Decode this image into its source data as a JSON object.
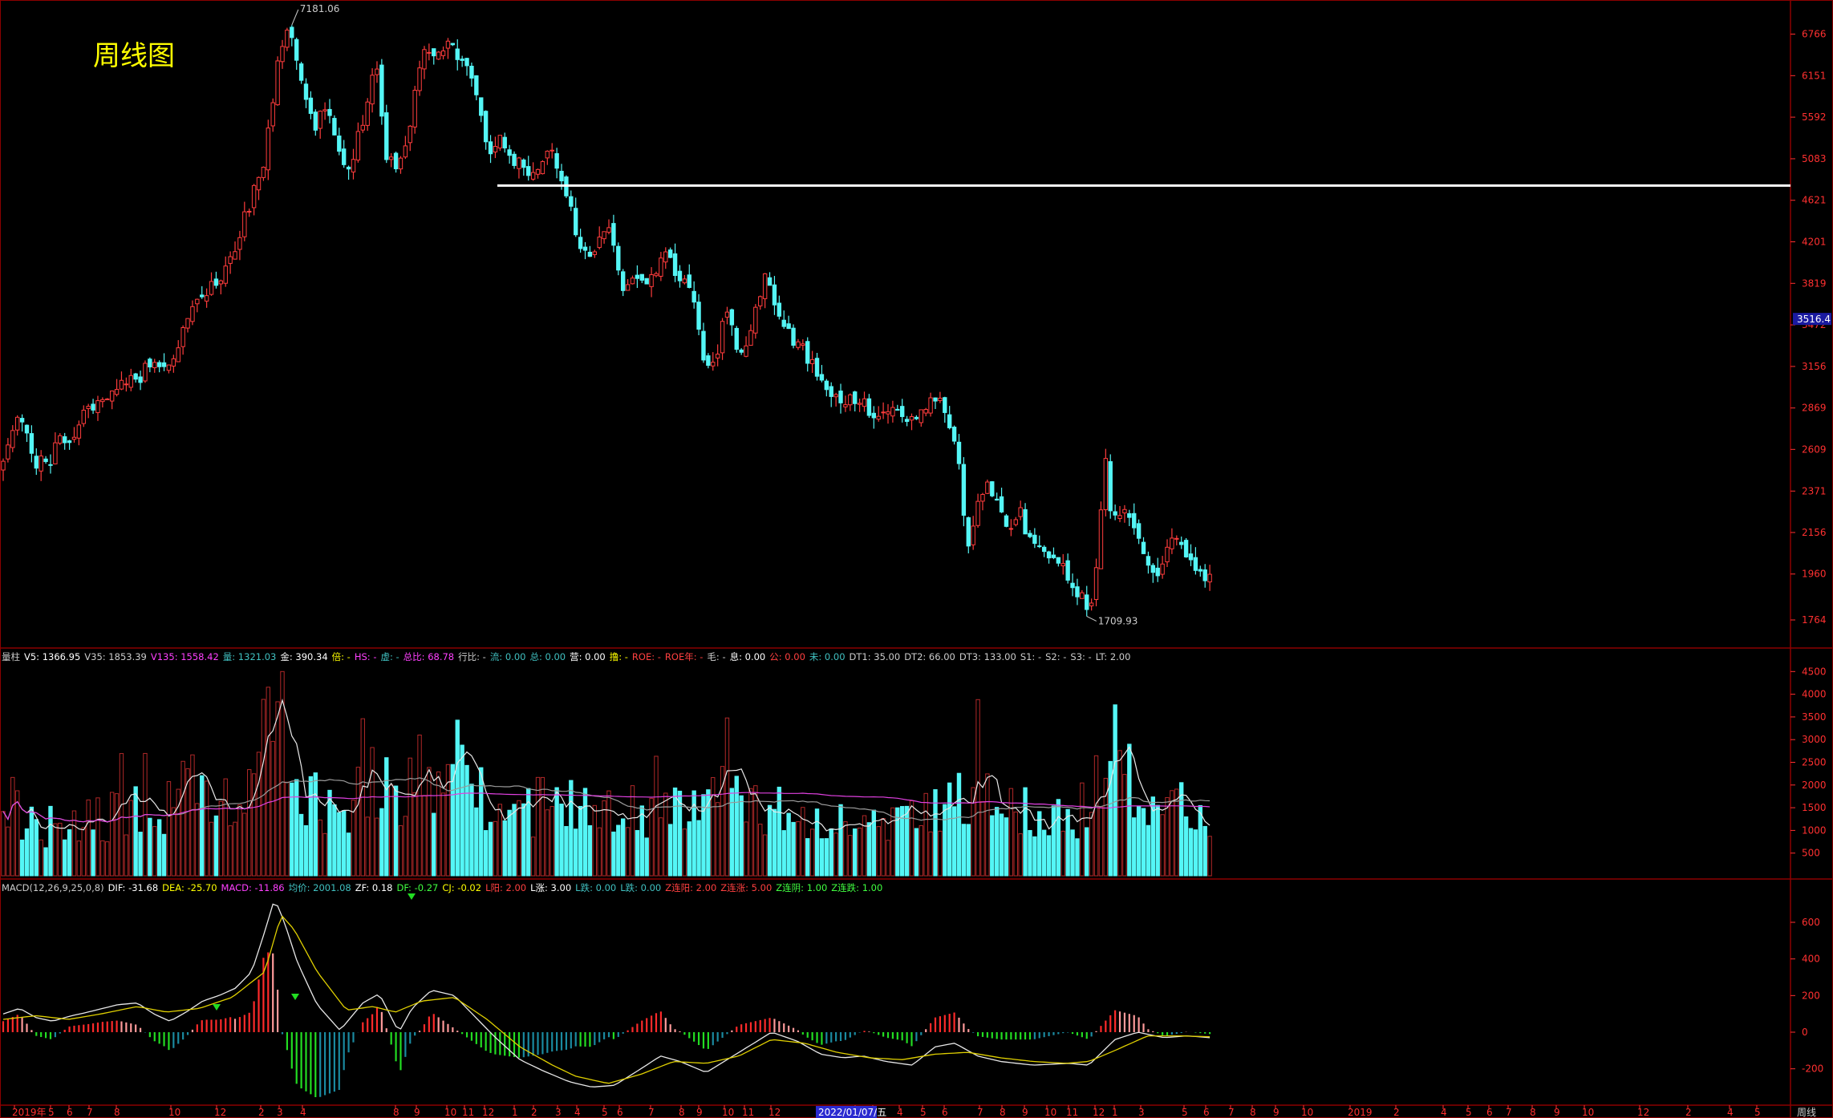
{
  "title": "周线图",
  "colors": {
    "up": "#ff3c3c",
    "down": "#54f6f6",
    "bg": "#000000",
    "grid": "#8b0000",
    "axis": "#ff3030",
    "ma_white": "#e8e8e8",
    "ma_yellow": "#e0d000",
    "ma_magenta": "#e040e0",
    "level_line": "#ffffff"
  },
  "volume_header": [
    {
      "t": "量柱",
      "c": "#cccccc"
    },
    {
      "t": "V5: 1366.95",
      "c": "#ffffff"
    },
    {
      "t": "V35: 1853.39",
      "c": "#cccccc"
    },
    {
      "t": "V135: 1558.42",
      "c": "#ff40ff"
    },
    {
      "t": "量: 1321.03",
      "c": "#40c0c0"
    },
    {
      "t": "金: 390.34",
      "c": "#ffffff"
    },
    {
      "t": "倍: -",
      "c": "#ffff00"
    },
    {
      "t": "HS: -",
      "c": "#ff40ff"
    },
    {
      "t": "虚: -",
      "c": "#40c0c0"
    },
    {
      "t": "总比: 68.78",
      "c": "#ff40ff"
    },
    {
      "t": "行比: -",
      "c": "#cccccc"
    },
    {
      "t": "流: 0.00",
      "c": "#40c0c0"
    },
    {
      "t": "总: 0.00",
      "c": "#40c0c0"
    },
    {
      "t": "营: 0.00",
      "c": "#ffffff"
    },
    {
      "t": "撸: -",
      "c": "#ffff00"
    },
    {
      "t": "ROE: -",
      "c": "#ff4040"
    },
    {
      "t": "ROE年: -",
      "c": "#ff4040"
    },
    {
      "t": "毛: -",
      "c": "#cccccc"
    },
    {
      "t": "息: 0.00",
      "c": "#ffffff"
    },
    {
      "t": "公: 0.00",
      "c": "#ff4040"
    },
    {
      "t": "未: 0.00",
      "c": "#40c0c0"
    },
    {
      "t": "DT1: 35.00",
      "c": "#cccccc"
    },
    {
      "t": "DT2: 66.00",
      "c": "#cccccc"
    },
    {
      "t": "DT3: 133.00",
      "c": "#cccccc"
    },
    {
      "t": "S1: -",
      "c": "#cccccc"
    },
    {
      "t": "S2: -",
      "c": "#cccccc"
    },
    {
      "t": "S3: -",
      "c": "#cccccc"
    },
    {
      "t": "LT: 2.00",
      "c": "#cccccc"
    }
  ],
  "macd_header": [
    {
      "t": "MACD(12,26,9,25,0,8)",
      "c": "#cccccc"
    },
    {
      "t": "DIF: -31.68",
      "c": "#ffffff"
    },
    {
      "t": "DEA: -25.70",
      "c": "#ffff00"
    },
    {
      "t": "MACD: -11.86",
      "c": "#ff40ff"
    },
    {
      "t": "均价: 2001.08",
      "c": "#40c0c0"
    },
    {
      "t": "ZF: 0.18",
      "c": "#ffffff"
    },
    {
      "t": "DF: -0.27",
      "c": "#40ff40"
    },
    {
      "t": "CJ: -0.02",
      "c": "#ffff00"
    },
    {
      "t": "L阳: 2.00",
      "c": "#ff4040"
    },
    {
      "t": "L涨: 3.00",
      "c": "#ffffff"
    },
    {
      "t": "L跌: 0.00",
      "c": "#40c0c0"
    },
    {
      "t": "L跌: 0.00",
      "c": "#40c0c0"
    },
    {
      "t": "Z连阳: 2.00",
      "c": "#ff4040"
    },
    {
      "t": "Z连涨: 5.00",
      "c": "#ff4040"
    },
    {
      "t": "Z连阴: 1.00",
      "c": "#40ff40"
    },
    {
      "t": "Z连跌: 1.00",
      "c": "#40ff40"
    }
  ],
  "chart_data": [
    {
      "type": "candlestick",
      "panel": "price",
      "ylim": [
        1660,
        7250
      ],
      "yticks": [
        6766,
        6151,
        5592,
        5083,
        4621,
        4201,
        3819,
        3472,
        3156,
        2869,
        2609,
        2371,
        2156,
        1960,
        1764
      ],
      "current_price": "3516.4",
      "annotations": {
        "high": "7181.06",
        "low": "1709.93"
      },
      "level_line": 4780,
      "n_bars": 256,
      "anchors": [
        [
          0,
          2520
        ],
        [
          10,
          2800
        ],
        [
          20,
          2530
        ],
        [
          28,
          2520
        ],
        [
          32,
          2640
        ],
        [
          42,
          2680
        ],
        [
          52,
          2870
        ],
        [
          62,
          2930
        ],
        [
          72,
          3030
        ],
        [
          82,
          3050
        ],
        [
          92,
          3210
        ],
        [
          102,
          3150
        ],
        [
          112,
          3530
        ],
        [
          122,
          3740
        ],
        [
          132,
          3850
        ],
        [
          140,
          4080
        ],
        [
          148,
          4470
        ],
        [
          152,
          4620
        ],
        [
          160,
          5110
        ],
        [
          170,
          6600
        ],
        [
          174,
          6900
        ],
        [
          180,
          6400
        ],
        [
          184,
          5900
        ],
        [
          190,
          5380
        ],
        [
          198,
          5800
        ],
        [
          204,
          5300
        ],
        [
          210,
          4900
        ],
        [
          220,
          5500
        ],
        [
          228,
          6300
        ],
        [
          234,
          5150
        ],
        [
          242,
          4980
        ],
        [
          248,
          5400
        ],
        [
          256,
          6500
        ],
        [
          264,
          6500
        ],
        [
          272,
          6600
        ],
        [
          280,
          6400
        ],
        [
          288,
          6050
        ],
        [
          296,
          5150
        ],
        [
          304,
          5350
        ],
        [
          312,
          5100
        ],
        [
          320,
          5000
        ],
        [
          326,
          4830
        ],
        [
          334,
          5180
        ],
        [
          340,
          5000
        ],
        [
          346,
          4620
        ],
        [
          352,
          4200
        ],
        [
          358,
          4050
        ],
        [
          364,
          4190
        ],
        [
          372,
          4310
        ],
        [
          380,
          3730
        ],
        [
          388,
          3900
        ],
        [
          396,
          3810
        ],
        [
          404,
          4150
        ],
        [
          412,
          3910
        ],
        [
          420,
          3780
        ],
        [
          428,
          3200
        ],
        [
          436,
          3240
        ],
        [
          442,
          3610
        ],
        [
          450,
          3220
        ],
        [
          458,
          3450
        ],
        [
          466,
          3880
        ],
        [
          474,
          3590
        ],
        [
          482,
          3350
        ],
        [
          490,
          3260
        ],
        [
          498,
          3100
        ],
        [
          506,
          2950
        ],
        [
          514,
          2930
        ],
        [
          522,
          2910
        ],
        [
          530,
          2860
        ],
        [
          538,
          2830
        ],
        [
          546,
          2840
        ],
        [
          554,
          2820
        ],
        [
          562,
          2860
        ],
        [
          570,
          2960
        ],
        [
          578,
          2780
        ],
        [
          584,
          2580
        ],
        [
          590,
          2050
        ],
        [
          598,
          2400
        ],
        [
          606,
          2360
        ],
        [
          614,
          2180
        ],
        [
          622,
          2250
        ],
        [
          630,
          2080
        ],
        [
          638,
          2040
        ],
        [
          646,
          1990
        ],
        [
          652,
          1950
        ],
        [
          660,
          1850
        ],
        [
          664,
          1770
        ],
        [
          670,
          2090
        ],
        [
          674,
          2620
        ],
        [
          678,
          2200
        ],
        [
          684,
          2280
        ],
        [
          692,
          2200
        ],
        [
          700,
          2020
        ],
        [
          706,
          1960
        ],
        [
          714,
          2120
        ],
        [
          722,
          2060
        ],
        [
          730,
          1950
        ],
        [
          738,
          1970
        ]
      ]
    },
    {
      "type": "bar",
      "panel": "volume",
      "ylim": [
        0,
        4700
      ],
      "yticks": [
        4500,
        4000,
        3500,
        3000,
        2500,
        2000,
        1500,
        1000,
        500.0
      ],
      "ma_series": [
        {
          "name": "V5"
        },
        {
          "name": "V35"
        },
        {
          "name": "V135"
        }
      ],
      "anchors": [
        [
          0,
          1700
        ],
        [
          20,
          1200
        ],
        [
          40,
          950
        ],
        [
          52,
          1400
        ],
        [
          62,
          1300
        ],
        [
          72,
          1250
        ],
        [
          82,
          1100
        ],
        [
          92,
          1350
        ],
        [
          102,
          1150
        ],
        [
          112,
          1900
        ],
        [
          118,
          2500
        ],
        [
          126,
          2100
        ],
        [
          140,
          1700
        ],
        [
          152,
          2200
        ],
        [
          160,
          3400
        ],
        [
          166,
          4000
        ],
        [
          172,
          3300
        ],
        [
          180,
          2000
        ],
        [
          190,
          1650
        ],
        [
          210,
          1500
        ],
        [
          222,
          1800
        ],
        [
          232,
          2200
        ],
        [
          244,
          1500
        ],
        [
          256,
          2300
        ],
        [
          272,
          1900
        ],
        [
          284,
          2200
        ],
        [
          296,
          1500
        ],
        [
          310,
          1600
        ],
        [
          330,
          1500
        ],
        [
          346,
          1350
        ],
        [
          360,
          1650
        ],
        [
          380,
          1650
        ],
        [
          400,
          1400
        ],
        [
          420,
          1300
        ],
        [
          440,
          1700
        ],
        [
          460,
          1600
        ],
        [
          480,
          1300
        ],
        [
          500,
          1150
        ],
        [
          520,
          1250
        ],
        [
          540,
          1100
        ],
        [
          560,
          1250
        ],
        [
          580,
          1500
        ],
        [
          596,
          1900
        ],
        [
          610,
          1600
        ],
        [
          630,
          1300
        ],
        [
          650,
          1200
        ],
        [
          664,
          1100
        ],
        [
          674,
          2700
        ],
        [
          684,
          2800
        ],
        [
          694,
          1800
        ],
        [
          706,
          1100
        ],
        [
          720,
          1500
        ],
        [
          732,
          1200
        ],
        [
          738,
          1300
        ]
      ]
    },
    {
      "type": "line",
      "panel": "macd",
      "ylim": [
        -310,
        780
      ],
      "yticks": [
        600.0,
        400.0,
        200.0,
        0.0,
        -200.0
      ],
      "series": [
        {
          "name": "DIF"
        },
        {
          "name": "DEA"
        },
        {
          "name": "MACD"
        }
      ],
      "dif_anchors": [
        [
          0,
          100
        ],
        [
          10,
          130
        ],
        [
          20,
          80
        ],
        [
          30,
          60
        ],
        [
          42,
          90
        ],
        [
          52,
          110
        ],
        [
          70,
          150
        ],
        [
          82,
          160
        ],
        [
          92,
          100
        ],
        [
          102,
          60
        ],
        [
          112,
          110
        ],
        [
          122,
          170
        ],
        [
          132,
          200
        ],
        [
          142,
          240
        ],
        [
          152,
          330
        ],
        [
          160,
          550
        ],
        [
          166,
          730
        ],
        [
          172,
          600
        ],
        [
          180,
          380
        ],
        [
          192,
          150
        ],
        [
          206,
          10
        ],
        [
          220,
          160
        ],
        [
          230,
          210
        ],
        [
          242,
          0
        ],
        [
          250,
          130
        ],
        [
          262,
          230
        ],
        [
          276,
          200
        ],
        [
          288,
          90
        ],
        [
          300,
          -20
        ],
        [
          316,
          -150
        ],
        [
          330,
          -210
        ],
        [
          346,
          -270
        ],
        [
          360,
          -300
        ],
        [
          374,
          -290
        ],
        [
          390,
          -200
        ],
        [
          402,
          -130
        ],
        [
          414,
          -160
        ],
        [
          430,
          -220
        ],
        [
          450,
          -110
        ],
        [
          470,
          0
        ],
        [
          486,
          -50
        ],
        [
          500,
          -120
        ],
        [
          514,
          -140
        ],
        [
          526,
          -130
        ],
        [
          540,
          -160
        ],
        [
          556,
          -180
        ],
        [
          570,
          -80
        ],
        [
          582,
          -60
        ],
        [
          596,
          -130
        ],
        [
          610,
          -160
        ],
        [
          630,
          -180
        ],
        [
          652,
          -170
        ],
        [
          664,
          -180
        ],
        [
          680,
          -40
        ],
        [
          694,
          0
        ],
        [
          710,
          -30
        ],
        [
          724,
          -20
        ],
        [
          738,
          -30
        ]
      ],
      "dea_anchors": [
        [
          0,
          70
        ],
        [
          20,
          90
        ],
        [
          40,
          70
        ],
        [
          60,
          100
        ],
        [
          82,
          140
        ],
        [
          100,
          110
        ],
        [
          120,
          130
        ],
        [
          140,
          190
        ],
        [
          160,
          330
        ],
        [
          170,
          640
        ],
        [
          178,
          560
        ],
        [
          192,
          330
        ],
        [
          210,
          120
        ],
        [
          226,
          140
        ],
        [
          240,
          110
        ],
        [
          256,
          170
        ],
        [
          276,
          190
        ],
        [
          296,
          70
        ],
        [
          316,
          -80
        ],
        [
          336,
          -180
        ],
        [
          350,
          -240
        ],
        [
          370,
          -280
        ],
        [
          390,
          -230
        ],
        [
          410,
          -160
        ],
        [
          430,
          -170
        ],
        [
          450,
          -130
        ],
        [
          470,
          -40
        ],
        [
          490,
          -60
        ],
        [
          510,
          -110
        ],
        [
          530,
          -140
        ],
        [
          550,
          -150
        ],
        [
          570,
          -120
        ],
        [
          590,
          -110
        ],
        [
          610,
          -140
        ],
        [
          630,
          -160
        ],
        [
          650,
          -170
        ],
        [
          664,
          -160
        ],
        [
          680,
          -100
        ],
        [
          700,
          -20
        ],
        [
          720,
          -20
        ],
        [
          738,
          -25
        ]
      ],
      "marks": [
        "down-arrow-1",
        "down-arrow-2",
        "down-arrow-3",
        "sell-arrow"
      ]
    }
  ],
  "x_axis": {
    "labels": [
      [
        "2019年",
        18
      ],
      [
        "5",
        63
      ],
      [
        "6",
        86
      ],
      [
        "7",
        111
      ],
      [
        "8",
        145
      ],
      [
        "10",
        213
      ],
      [
        "12",
        270
      ],
      [
        "2",
        325
      ],
      [
        "3",
        348
      ],
      [
        "4",
        377
      ],
      [
        "8",
        493
      ],
      [
        "9",
        519
      ],
      [
        "10",
        557
      ],
      [
        "11",
        579
      ],
      [
        "12",
        604
      ],
      [
        "1",
        641
      ],
      [
        "2",
        665
      ],
      [
        "3",
        695
      ],
      [
        "4",
        719
      ],
      [
        "5",
        753
      ],
      [
        "6",
        772
      ],
      [
        "7",
        811
      ],
      [
        "8",
        849
      ],
      [
        "9",
        871
      ],
      [
        "10",
        903
      ],
      [
        "11",
        928
      ],
      [
        "12",
        961
      ],
      [
        "2",
        1066
      ],
      [
        "3",
        1088
      ],
      [
        "4",
        1121
      ],
      [
        "5",
        1150
      ],
      [
        "6",
        1177
      ],
      [
        "7",
        1221
      ],
      [
        "8",
        1249
      ],
      [
        "9",
        1277
      ],
      [
        "10",
        1305
      ],
      [
        "11",
        1332
      ],
      [
        "12",
        1365
      ],
      [
        "1",
        1389
      ],
      [
        "3",
        1422
      ],
      [
        "5",
        1476
      ],
      [
        "6",
        1503
      ],
      [
        "7",
        1534
      ],
      [
        "8",
        1561
      ],
      [
        "9",
        1590
      ],
      [
        "10",
        1625
      ],
      [
        "2019",
        1683
      ],
      [
        "2",
        1740
      ],
      [
        "4",
        1799
      ],
      [
        "5",
        1830
      ],
      [
        "6",
        1856
      ],
      [
        "7",
        1880
      ],
      [
        "8",
        1910
      ],
      [
        "9",
        1940
      ],
      [
        "10",
        1975
      ],
      [
        "12",
        2044
      ],
      [
        "2",
        2104
      ],
      [
        "4",
        2156
      ],
      [
        "5",
        2190
      ]
    ],
    "highlight": "2022/01/07/五",
    "period": "周线"
  }
}
